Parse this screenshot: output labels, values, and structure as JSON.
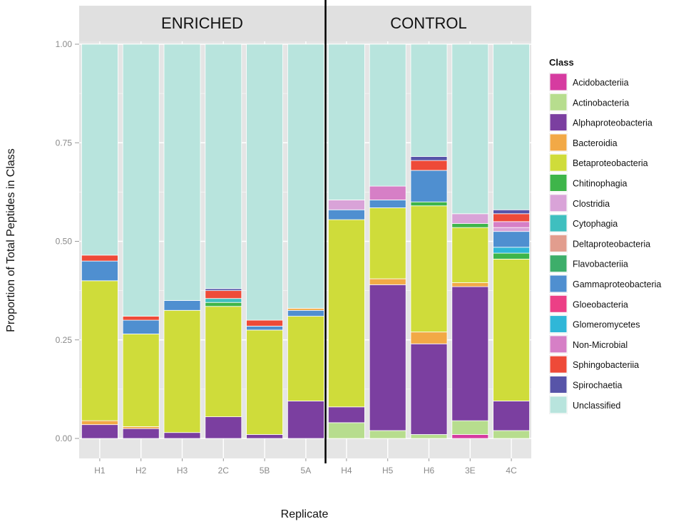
{
  "chart_data": {
    "type": "bar",
    "stacked": true,
    "ylabel": "Proportion of Total Peptides in Class",
    "xlabel": "Replicate",
    "ylim": [
      0,
      1
    ],
    "yticks": [
      "0.00",
      "0.25",
      "0.50",
      "0.75",
      "1.00"
    ],
    "grid": true,
    "legend_position": "right",
    "legend_title": "Class",
    "panels": [
      {
        "label": "ENRICHED",
        "categories": [
          "H1",
          "H2",
          "H3",
          "2C",
          "5B",
          "5A"
        ]
      },
      {
        "label": "CONTROL",
        "categories": [
          "H4",
          "H5",
          "H6",
          "3E",
          "4C"
        ]
      }
    ],
    "classes": [
      {
        "name": "Acidobacteriia",
        "color": "#d63ba0"
      },
      {
        "name": "Actinobacteria",
        "color": "#b7dd8e"
      },
      {
        "name": "Alphaproteobacteria",
        "color": "#7b3fa0"
      },
      {
        "name": "Bacteroidia",
        "color": "#f2a946"
      },
      {
        "name": "Betaproteobacteria",
        "color": "#cfdc3a"
      },
      {
        "name": "Chitinophagia",
        "color": "#3eb54a"
      },
      {
        "name": "Clostridia",
        "color": "#d9a3d8"
      },
      {
        "name": "Cytophagia",
        "color": "#3fbfbf"
      },
      {
        "name": "Deltaproteobacteria",
        "color": "#e29d8e"
      },
      {
        "name": "Flavobacteriia",
        "color": "#3dae6a"
      },
      {
        "name": "Gammaproteobacteria",
        "color": "#4f8fd0"
      },
      {
        "name": "Gloeobacteria",
        "color": "#ec3f86"
      },
      {
        "name": "Glomeromycetes",
        "color": "#2fb7d8"
      },
      {
        "name": "Non-Microbial",
        "color": "#d67fc6"
      },
      {
        "name": "Sphingobacteriia",
        "color": "#ee4a38"
      },
      {
        "name": "Spirochaetia",
        "color": "#5754a8"
      },
      {
        "name": "Unclassified",
        "color": "#b8e4dd"
      }
    ],
    "bars": [
      {
        "replicate": "H1",
        "segments": [
          [
            "Alphaproteobacteria",
            0.035
          ],
          [
            "Bacteroidia",
            0.01
          ],
          [
            "Betaproteobacteria",
            0.355
          ],
          [
            "Gammaproteobacteria",
            0.05
          ],
          [
            "Sphingobacteriia",
            0.015
          ],
          [
            "Unclassified",
            0.535
          ]
        ]
      },
      {
        "replicate": "H2",
        "segments": [
          [
            "Alphaproteobacteria",
            0.025
          ],
          [
            "Bacteroidia",
            0.005
          ],
          [
            "Betaproteobacteria",
            0.235
          ],
          [
            "Gammaproteobacteria",
            0.035
          ],
          [
            "Sphingobacteriia",
            0.01
          ],
          [
            "Unclassified",
            0.69
          ]
        ]
      },
      {
        "replicate": "H3",
        "segments": [
          [
            "Alphaproteobacteria",
            0.015
          ],
          [
            "Betaproteobacteria",
            0.31
          ],
          [
            "Gammaproteobacteria",
            0.025
          ],
          [
            "Unclassified",
            0.65
          ]
        ]
      },
      {
        "replicate": "2C",
        "segments": [
          [
            "Alphaproteobacteria",
            0.055
          ],
          [
            "Betaproteobacteria",
            0.28
          ],
          [
            "Chitinophagia",
            0.01
          ],
          [
            "Cytophagia",
            0.01
          ],
          [
            "Sphingobacteriia",
            0.02
          ],
          [
            "Spirochaetia",
            0.005
          ],
          [
            "Unclassified",
            0.62
          ]
        ]
      },
      {
        "replicate": "5B",
        "segments": [
          [
            "Alphaproteobacteria",
            0.01
          ],
          [
            "Betaproteobacteria",
            0.265
          ],
          [
            "Gammaproteobacteria",
            0.01
          ],
          [
            "Sphingobacteriia",
            0.015
          ],
          [
            "Unclassified",
            0.7
          ]
        ]
      },
      {
        "replicate": "5A",
        "segments": [
          [
            "Alphaproteobacteria",
            0.095
          ],
          [
            "Betaproteobacteria",
            0.215
          ],
          [
            "Gammaproteobacteria",
            0.015
          ],
          [
            "Bacteroidia",
            0.005
          ],
          [
            "Unclassified",
            0.67
          ]
        ]
      },
      {
        "replicate": "H4",
        "segments": [
          [
            "Actinobacteria",
            0.04
          ],
          [
            "Alphaproteobacteria",
            0.04
          ],
          [
            "Betaproteobacteria",
            0.475
          ],
          [
            "Gammaproteobacteria",
            0.025
          ],
          [
            "Clostridia",
            0.025
          ],
          [
            "Unclassified",
            0.395
          ]
        ]
      },
      {
        "replicate": "H5",
        "segments": [
          [
            "Actinobacteria",
            0.02
          ],
          [
            "Alphaproteobacteria",
            0.37
          ],
          [
            "Bacteroidia",
            0.015
          ],
          [
            "Betaproteobacteria",
            0.18
          ],
          [
            "Gammaproteobacteria",
            0.02
          ],
          [
            "Non-Microbial",
            0.035
          ],
          [
            "Unclassified",
            0.36
          ]
        ]
      },
      {
        "replicate": "H6",
        "segments": [
          [
            "Actinobacteria",
            0.01
          ],
          [
            "Alphaproteobacteria",
            0.23
          ],
          [
            "Bacteroidia",
            0.03
          ],
          [
            "Betaproteobacteria",
            0.32
          ],
          [
            "Chitinophagia",
            0.01
          ],
          [
            "Gammaproteobacteria",
            0.08
          ],
          [
            "Sphingobacteriia",
            0.025
          ],
          [
            "Spirochaetia",
            0.01
          ],
          [
            "Unclassified",
            0.285
          ]
        ]
      },
      {
        "replicate": "3E",
        "segments": [
          [
            "Acidobacteriia",
            0.01
          ],
          [
            "Actinobacteria",
            0.035
          ],
          [
            "Alphaproteobacteria",
            0.34
          ],
          [
            "Bacteroidia",
            0.01
          ],
          [
            "Betaproteobacteria",
            0.14
          ],
          [
            "Chitinophagia",
            0.01
          ],
          [
            "Clostridia",
            0.025
          ],
          [
            "Unclassified",
            0.43
          ]
        ]
      },
      {
        "replicate": "4C",
        "segments": [
          [
            "Actinobacteria",
            0.02
          ],
          [
            "Alphaproteobacteria",
            0.075
          ],
          [
            "Betaproteobacteria",
            0.36
          ],
          [
            "Chitinophagia",
            0.015
          ],
          [
            "Glomeromycetes",
            0.015
          ],
          [
            "Gammaproteobacteria",
            0.04
          ],
          [
            "Clostridia",
            0.01
          ],
          [
            "Non-Microbial",
            0.015
          ],
          [
            "Sphingobacteriia",
            0.02
          ],
          [
            "Spirochaetia",
            0.01
          ],
          [
            "Unclassified",
            0.42
          ]
        ]
      }
    ]
  }
}
